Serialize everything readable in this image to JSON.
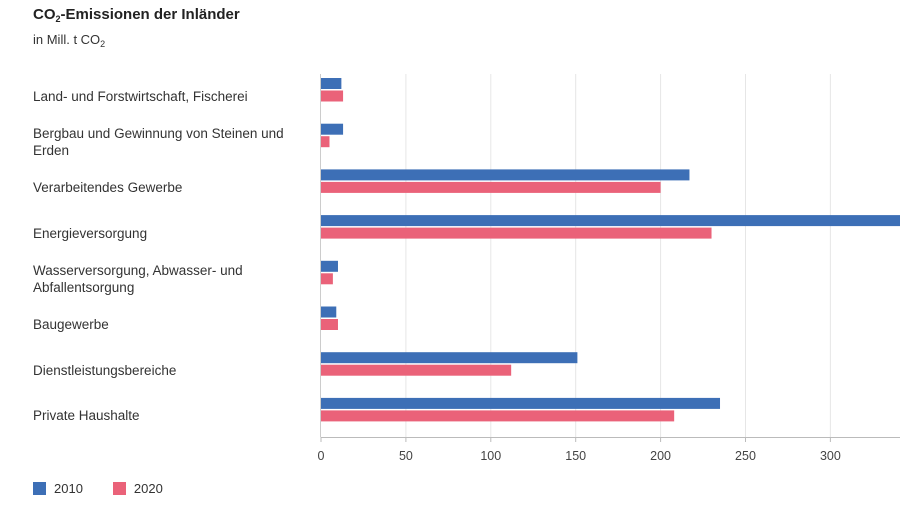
{
  "chart_data": {
    "type": "bar",
    "orientation": "horizontal",
    "title_main": "CO",
    "title_sub": "2",
    "title_rest": "-Emissionen der Inländer",
    "subtitle_main": "in Mill. t CO",
    "subtitle_sub": "2",
    "categories": [
      "Land- und Forstwirtschaft, Fischerei",
      "Bergbau und Gewinnung von Steinen und Erden",
      "Verarbeitendes Gewerbe",
      "Energieversorgung",
      "Wasserversorgung, Abwasser- und Abfallentsorgung",
      "Baugewerbe",
      "Dienstleistungsbereiche",
      "Private Haushalte"
    ],
    "series": [
      {
        "name": "2010",
        "color": "#3d6fb6",
        "values": [
          12,
          13,
          217,
          341,
          10,
          9,
          151,
          235
        ]
      },
      {
        "name": "2020",
        "color": "#ea6279",
        "values": [
          13,
          5,
          200,
          230,
          7,
          10,
          112,
          208
        ]
      }
    ],
    "xlim": [
      0,
      341
    ],
    "xticks": [
      "0",
      "50",
      "100",
      "150",
      "200",
      "250",
      "300"
    ],
    "grid": true,
    "legend_position": "bottom-left"
  }
}
